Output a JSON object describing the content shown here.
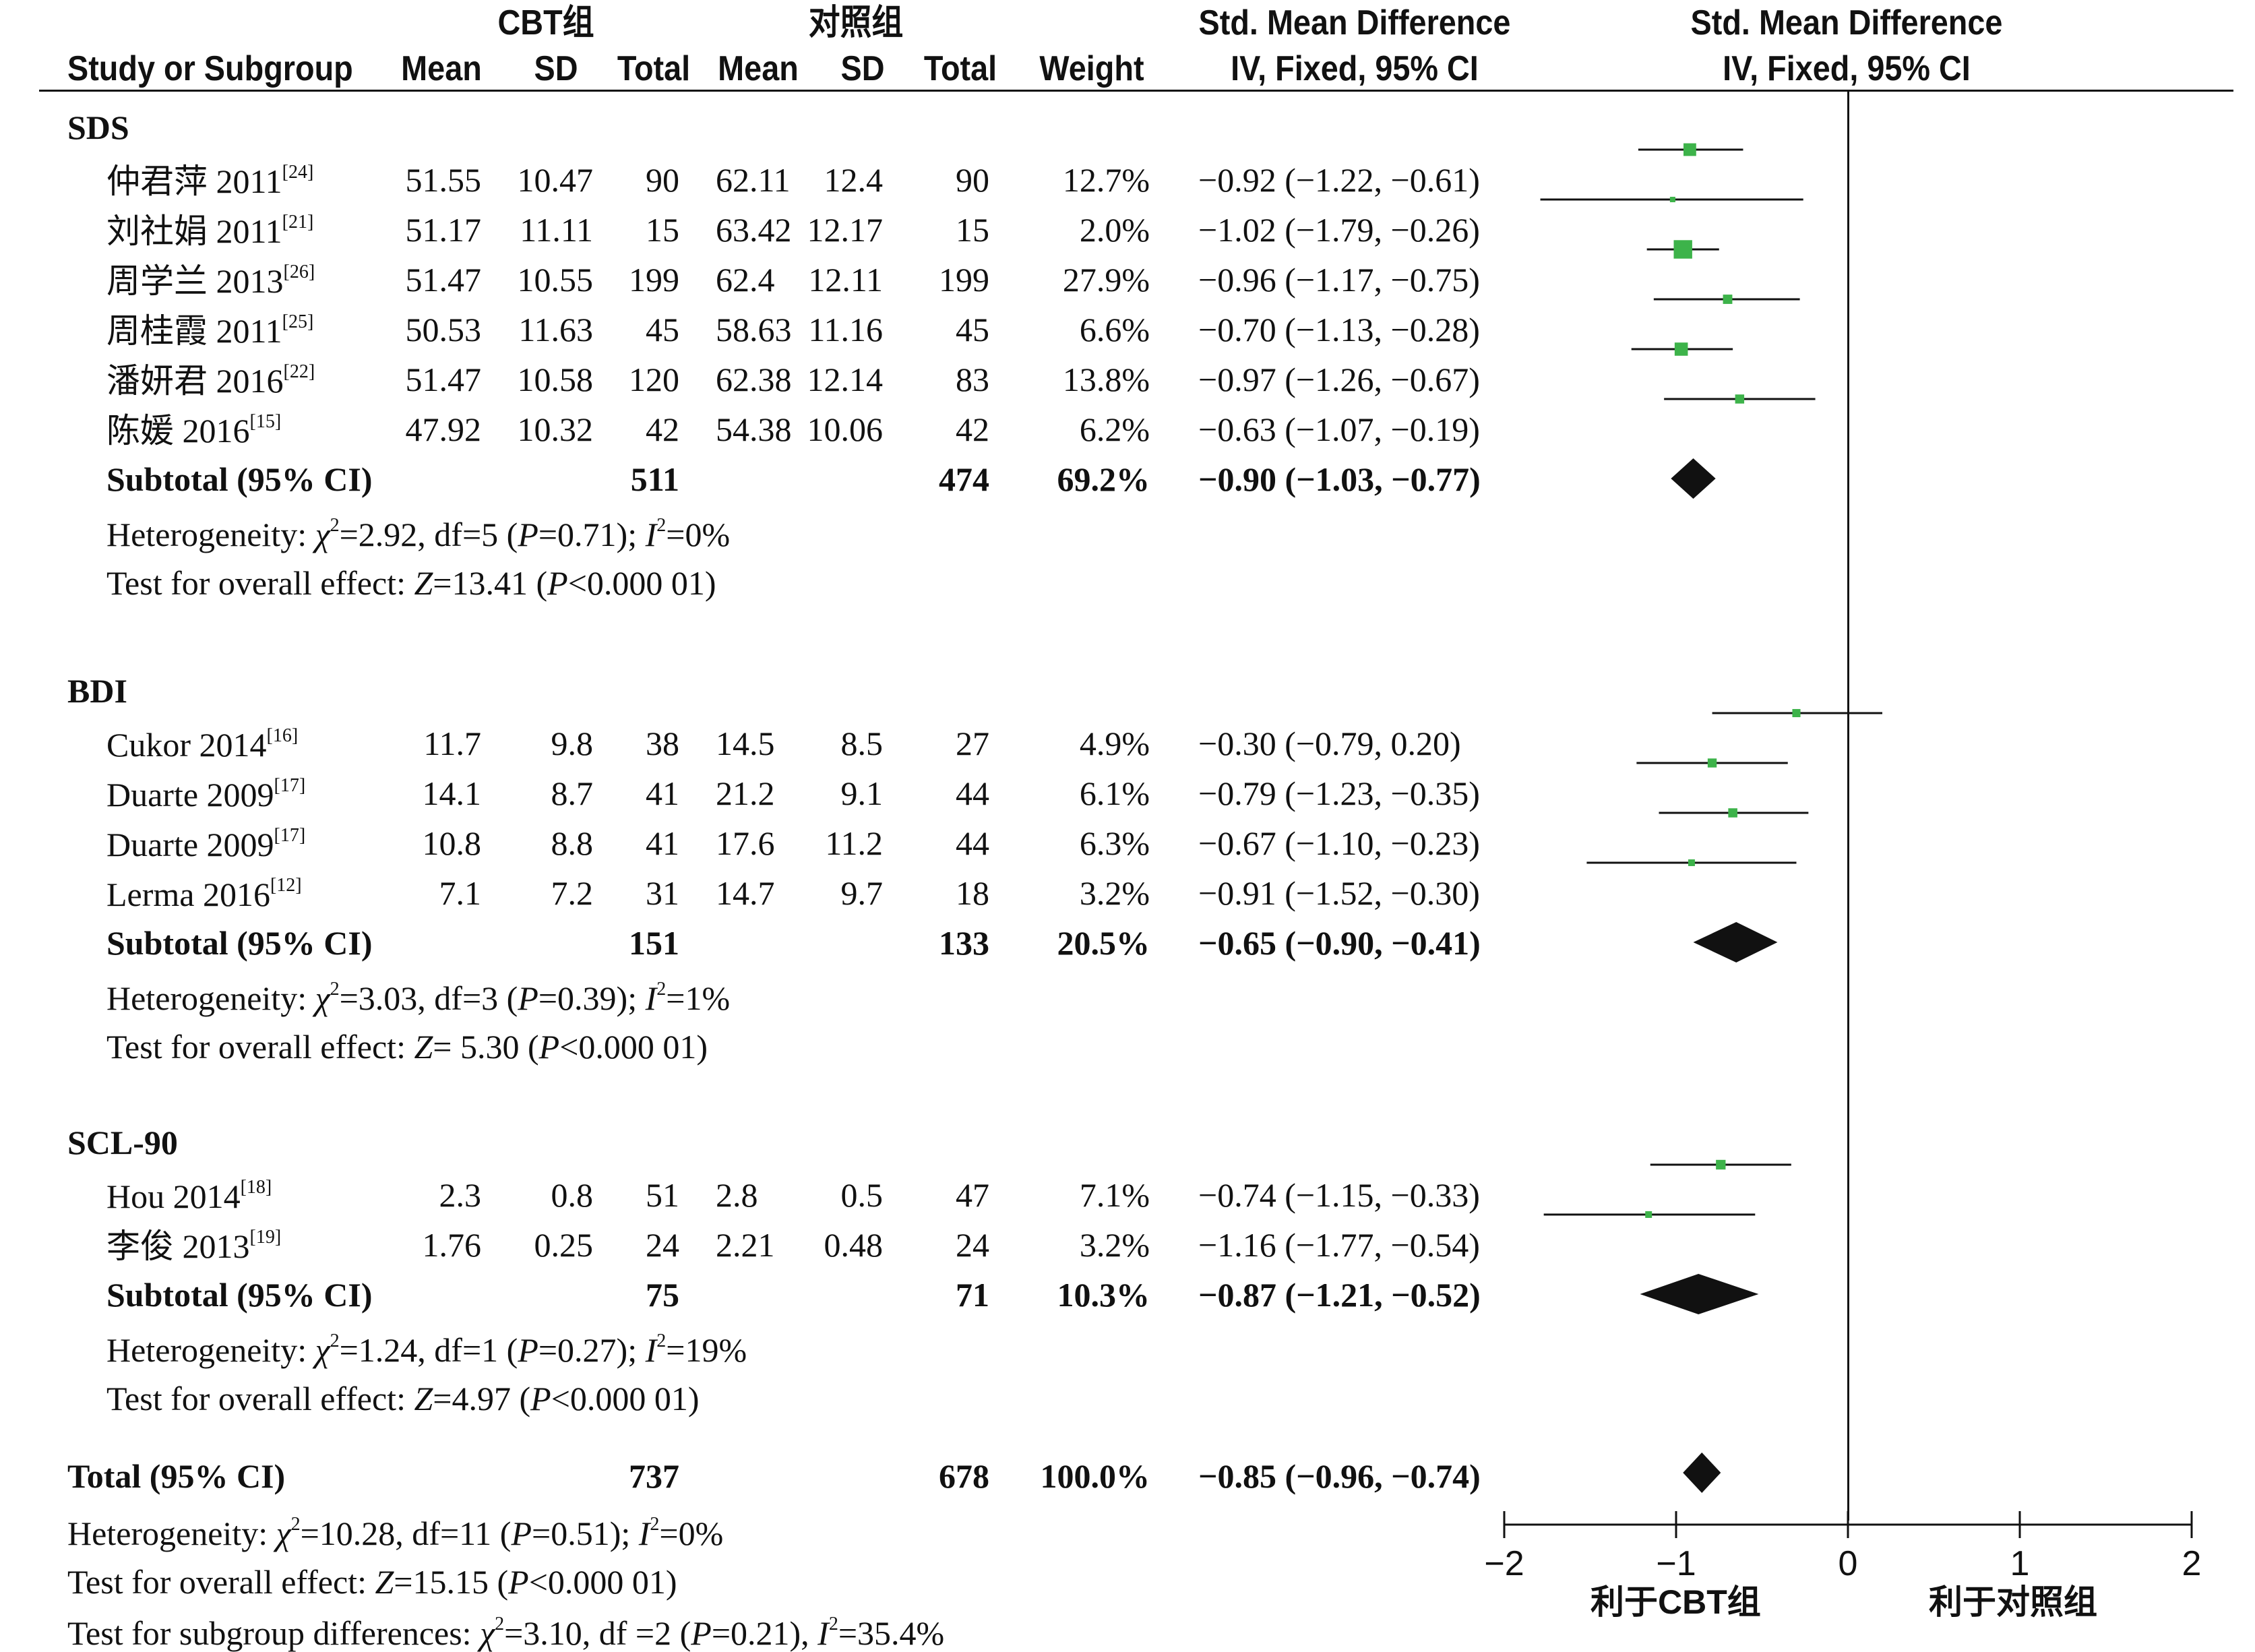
{
  "colors": {
    "marker": "#3db34a",
    "diamond": "#111111",
    "text": "#111111"
  },
  "header": {
    "group1": "CBT组",
    "group2": "对照组",
    "study_col": "Study or Subgroup",
    "mean": "Mean",
    "sd": "SD",
    "total": "Total",
    "weight": "Weight",
    "effect_title": "Std. Mean Difference",
    "effect_method": "IV, Fixed, 95% CI",
    "plot_title": "Std. Mean Difference",
    "plot_method": "IV, Fixed, 95% CI"
  },
  "chart_data": {
    "type": "forest",
    "xlim": [
      -2,
      2
    ],
    "ticks": [
      "−2",
      "−1",
      "0",
      "1",
      "2"
    ],
    "tick_values": [
      -2,
      -1,
      0,
      1,
      2
    ],
    "favours_left": "利于CBT组",
    "favours_right": "利于对照组",
    "groups": [
      {
        "name": "SDS",
        "studies": [
          {
            "study": "仲君萍 2011",
            "ref": "[24]",
            "m1": "51.55",
            "sd1": "10.47",
            "n1": "90",
            "m2": "62.11",
            "sd2": "12.4",
            "n2": "90",
            "weight": "12.7%",
            "ci_text": "−0.92 (−1.22, −0.61)",
            "est": -0.92,
            "lo": -1.22,
            "hi": -0.61,
            "w": 12.7
          },
          {
            "study": "刘社娟 2011",
            "ref": "[21]",
            "m1": "51.17",
            "sd1": "11.11",
            "n1": "15",
            "m2": "63.42",
            "sd2": "12.17",
            "n2": "15",
            "weight": "2.0%",
            "ci_text": "−1.02 (−1.79, −0.26)",
            "est": -1.02,
            "lo": -1.79,
            "hi": -0.26,
            "w": 2.0
          },
          {
            "study": "周学兰 2013",
            "ref": "[26]",
            "m1": "51.47",
            "sd1": "10.55",
            "n1": "199",
            "m2": "62.4",
            "sd2": "12.11",
            "n2": "199",
            "weight": "27.9%",
            "ci_text": "−0.96 (−1.17, −0.75)",
            "est": -0.96,
            "lo": -1.17,
            "hi": -0.75,
            "w": 27.9
          },
          {
            "study": "周桂霞 2011",
            "ref": "[25]",
            "m1": "50.53",
            "sd1": "11.63",
            "n1": "45",
            "m2": "58.63",
            "sd2": "11.16",
            "n2": "45",
            "weight": "6.6%",
            "ci_text": "−0.70 (−1.13, −0.28)",
            "est": -0.7,
            "lo": -1.13,
            "hi": -0.28,
            "w": 6.6
          },
          {
            "study": "潘妍君 2016",
            "ref": "[22]",
            "m1": "51.47",
            "sd1": "10.58",
            "n1": "120",
            "m2": "62.38",
            "sd2": "12.14",
            "n2": "83",
            "weight": "13.8%",
            "ci_text": "−0.97 (−1.26, −0.67)",
            "est": -0.97,
            "lo": -1.26,
            "hi": -0.67,
            "w": 13.8
          },
          {
            "study": "陈媛 2016",
            "ref": "[15]",
            "m1": "47.92",
            "sd1": "10.32",
            "n1": "42",
            "m2": "54.38",
            "sd2": "10.06",
            "n2": "42",
            "weight": "6.2%",
            "ci_text": "−0.63 (−1.07, −0.19)",
            "est": -0.63,
            "lo": -1.07,
            "hi": -0.19,
            "w": 6.2
          }
        ],
        "subtotal": {
          "label": "Subtotal (95% CI)",
          "n1": "511",
          "n2": "474",
          "weight": "69.2%",
          "ci_text": "−0.90 (−1.03, −0.77)",
          "est": -0.9,
          "lo": -1.03,
          "hi": -0.77
        },
        "heterogeneity": {
          "prefix": "Heterogeneity: ",
          "chi": "χ",
          "chi_sup": "2",
          "chi_value": "=2.92, df=5 (",
          "p_sym": "P",
          "p_value": "=0.71); ",
          "i_sym": "I",
          "i_sup": "2",
          "i_value": "=0%"
        },
        "overall": {
          "prefix": "Test for overall effect: ",
          "z_sym": "Z",
          "z_value": "=13.41 (",
          "p_sym": "P",
          "p_value": "<0.000 01)"
        }
      },
      {
        "name": "BDI",
        "studies": [
          {
            "study": "Cukor 2014",
            "ref": "[16]",
            "m1": "11.7",
            "sd1": "9.8",
            "n1": "38",
            "m2": "14.5",
            "sd2": "8.5",
            "n2": "27",
            "weight": "4.9%",
            "ci_text": "−0.30 (−0.79, 0.20)",
            "est": -0.3,
            "lo": -0.79,
            "hi": 0.2,
            "w": 4.9
          },
          {
            "study": "Duarte 2009",
            "ref": "[17]",
            "m1": "14.1",
            "sd1": "8.7",
            "n1": "41",
            "m2": "21.2",
            "sd2": "9.1",
            "n2": "44",
            "weight": "6.1%",
            "ci_text": "−0.79 (−1.23, −0.35)",
            "est": -0.79,
            "lo": -1.23,
            "hi": -0.35,
            "w": 6.1
          },
          {
            "study": "Duarte 2009",
            "ref": "[17]",
            "m1": "10.8",
            "sd1": "8.8",
            "n1": "41",
            "m2": "17.6",
            "sd2": "11.2",
            "n2": "44",
            "weight": "6.3%",
            "ci_text": "−0.67 (−1.10, −0.23)",
            "est": -0.67,
            "lo": -1.1,
            "hi": -0.23,
            "w": 6.3
          },
          {
            "study": "Lerma 2016",
            "ref": "[12]",
            "m1": "7.1",
            "sd1": "7.2",
            "n1": "31",
            "m2": "14.7",
            "sd2": "9.7",
            "n2": "18",
            "weight": "3.2%",
            "ci_text": "−0.91 (−1.52, −0.30)",
            "est": -0.91,
            "lo": -1.52,
            "hi": -0.3,
            "w": 3.2
          }
        ],
        "subtotal": {
          "label": "Subtotal (95% CI)",
          "n1": "151",
          "n2": "133",
          "weight": "20.5%",
          "ci_text": "−0.65 (−0.90, −0.41)",
          "est": -0.65,
          "lo": -0.9,
          "hi": -0.41
        },
        "heterogeneity": {
          "prefix": "Heterogeneity: ",
          "chi": "χ",
          "chi_sup": "2",
          "chi_value": "=3.03, df=3 (",
          "p_sym": "P",
          "p_value": "=0.39); ",
          "i_sym": "I",
          "i_sup": "2",
          "i_value": "=1%"
        },
        "overall": {
          "prefix": "Test for overall effect: ",
          "z_sym": "Z",
          "z_value": "= 5.30 (",
          "p_sym": "P",
          "p_value": "<0.000 01)"
        }
      },
      {
        "name": "SCL-90",
        "studies": [
          {
            "study": "Hou 2014",
            "ref": "[18]",
            "m1": "2.3",
            "sd1": "0.8",
            "n1": "51",
            "m2": "2.8",
            "sd2": "0.5",
            "n2": "47",
            "weight": "7.1%",
            "ci_text": "−0.74 (−1.15, −0.33)",
            "est": -0.74,
            "lo": -1.15,
            "hi": -0.33,
            "w": 7.1
          },
          {
            "study": "李俊 2013",
            "ref": "[19]",
            "m1": "1.76",
            "sd1": "0.25",
            "n1": "24",
            "m2": "2.21",
            "sd2": "0.48",
            "n2": "24",
            "weight": "3.2%",
            "ci_text": "−1.16 (−1.77, −0.54)",
            "est": -1.16,
            "lo": -1.77,
            "hi": -0.54,
            "w": 3.2
          }
        ],
        "subtotal": {
          "label": "Subtotal (95% CI)",
          "n1": "75",
          "n2": "71",
          "weight": "10.3%",
          "ci_text": "−0.87 (−1.21, −0.52)",
          "est": -0.87,
          "lo": -1.21,
          "hi": -0.52
        },
        "heterogeneity": {
          "prefix": "Heterogeneity: ",
          "chi": "χ",
          "chi_sup": "2",
          "chi_value": "=1.24, df=1 (",
          "p_sym": "P",
          "p_value": "=0.27); ",
          "i_sym": "I",
          "i_sup": "2",
          "i_value": "=19%"
        },
        "overall": {
          "prefix": "Test for overall effect: ",
          "z_sym": "Z",
          "z_value": "=4.97 (",
          "p_sym": "P",
          "p_value": "<0.000 01)"
        }
      }
    ],
    "total": {
      "label": "Total (95% CI)",
      "n1": "737",
      "n2": "678",
      "weight": "100.0%",
      "ci_text": "−0.85 (−0.96, −0.74)",
      "est": -0.85,
      "lo": -0.96,
      "hi": -0.74
    },
    "total_heterogeneity": {
      "prefix": "Heterogeneity: ",
      "chi": "χ",
      "chi_sup": "2",
      "chi_value": "=10.28, df=11 (",
      "p_sym": "P",
      "p_value": "=0.51); ",
      "i_sym": "I",
      "i_sup": "2",
      "i_value": "=0%"
    },
    "total_overall": {
      "prefix": "Test for overall effect: ",
      "z_sym": "Z",
      "z_value": "=15.15 (",
      "p_sym": "P",
      "p_value": "<0.000 01)"
    },
    "subgroup_diff": {
      "prefix": "Test for subgroup differences: ",
      "chi": "χ",
      "chi_sup": "2",
      "chi_value": "=3.10, df =2 (",
      "p_sym": "P",
      "p_value": "=0.21), ",
      "i_sym": "I",
      "i_sup": "2",
      "i_value": "=35.4%"
    }
  }
}
